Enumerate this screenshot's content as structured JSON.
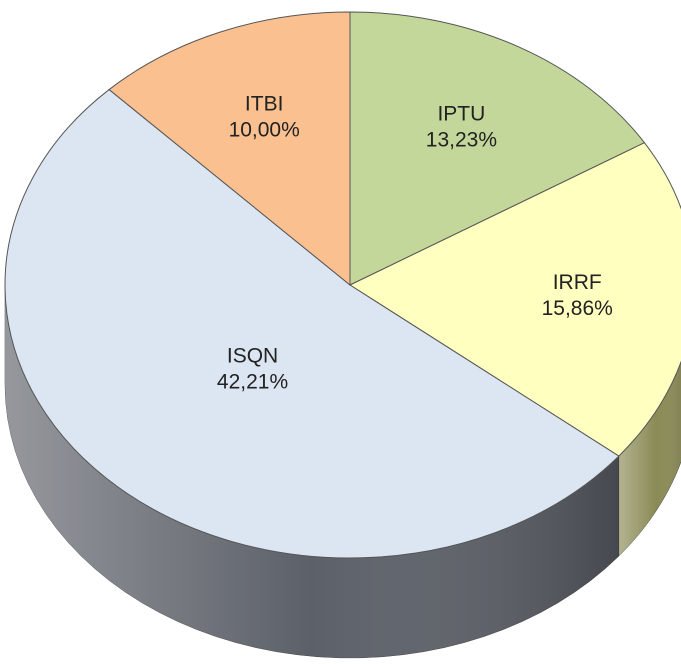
{
  "chart_data": {
    "type": "pie",
    "categories": [
      "IPTU",
      "IRRF",
      "ISQN",
      "ITBI"
    ],
    "values": [
      13.23,
      15.86,
      42.21,
      10.0
    ],
    "value_labels": [
      "13,23%",
      "15,86%",
      "42,21%",
      "10,00%"
    ],
    "colors": [
      "#c4d79b",
      "#ffffc0",
      "#dce6f2",
      "#fac090"
    ],
    "side_colors": [
      "#7f8c5a",
      "#8a8a55",
      "#5c6068",
      "#9a7050"
    ]
  }
}
